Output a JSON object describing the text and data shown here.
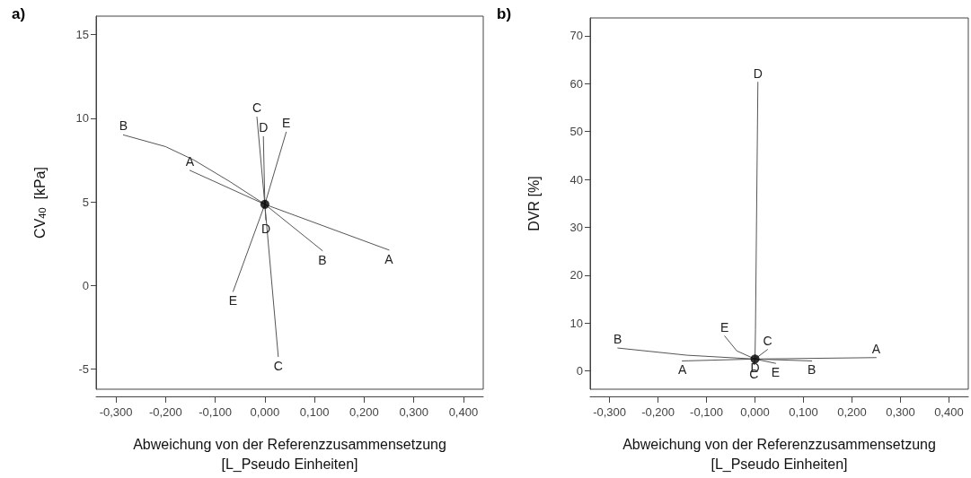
{
  "chart_data": [
    {
      "type": "line",
      "title": "a)",
      "xlabel": "Abweichung von der Referenzzusammensetzung\n[L_Pseudo Einheiten]",
      "ylabel": "CV$_{40}$  [kPa]",
      "marker": "none",
      "grid": false,
      "legend": false,
      "xlim": [
        -0.34,
        0.44
      ],
      "ylim": [
        -6.2,
        16.1
      ],
      "xticks": [
        {
          "value": -0.3,
          "label": "-0,300"
        },
        {
          "value": -0.2,
          "label": "-0,200"
        },
        {
          "value": -0.1,
          "label": "-0,100"
        },
        {
          "value": 0,
          "label": "0,000"
        },
        {
          "value": 0.1,
          "label": "0,100"
        },
        {
          "value": 0.2,
          "label": "0,200"
        },
        {
          "value": 0.3,
          "label": "0,300"
        },
        {
          "value": 0.4,
          "label": "0,400"
        }
      ],
      "yticks": [
        -5,
        0,
        5,
        10,
        15
      ],
      "series": [
        {
          "name": "A",
          "color": "#555555",
          "x": [
            -0.151,
            0,
            0.25
          ],
          "values": [
            6.88,
            4.85,
            2.12
          ]
        },
        {
          "name": "B",
          "color": "#555555",
          "x": [
            -0.285,
            -0.2,
            -0.143,
            -0.07,
            0,
            0.116
          ],
          "values": [
            9.0,
            8.3,
            7.5,
            6.2,
            4.85,
            2.08
          ]
        },
        {
          "name": "C",
          "color": "#555555",
          "x": [
            -0.016,
            0,
            0.027
          ],
          "values": [
            10.07,
            4.85,
            -4.25
          ]
        },
        {
          "name": "D",
          "color": "#555555",
          "x": [
            -0.003,
            0,
            0.002
          ],
          "values": [
            8.9,
            4.85,
            3.91
          ]
        },
        {
          "name": "E",
          "color": "#555555",
          "x": [
            0.043,
            0,
            -0.064
          ],
          "values": [
            9.17,
            4.85,
            -0.36
          ]
        },
        {
          "type": "scatter",
          "color": "#000000",
          "marker": "circle",
          "x": [
            0
          ],
          "values": [
            4.85
          ]
        }
      ]
    },
    {
      "type": "line",
      "title": "b)",
      "xlabel": "Abweichung von der Referenzzusammensetzung\n[L_Pseudo Einheiten]",
      "ylabel": "DVR [%]",
      "marker": "none",
      "grid": false,
      "legend": false,
      "xlim": [
        -0.34,
        0.44
      ],
      "ylim": [
        -3.8,
        73.7
      ],
      "xticks": [
        {
          "value": -0.3,
          "label": "-0,300"
        },
        {
          "value": -0.2,
          "label": "-0,200"
        },
        {
          "value": -0.1,
          "label": "-0,100"
        },
        {
          "value": 0,
          "label": "0,000"
        },
        {
          "value": 0.1,
          "label": "0,100"
        },
        {
          "value": 0.2,
          "label": "0,200"
        },
        {
          "value": 0.3,
          "label": "0,300"
        },
        {
          "value": 0.4,
          "label": "0,400"
        }
      ],
      "yticks": [
        0,
        10,
        20,
        30,
        40,
        50,
        60,
        70
      ],
      "series": [
        {
          "name": "A",
          "color": "#555555",
          "x": [
            -0.15,
            0,
            0.25
          ],
          "values": [
            2.1,
            2.5,
            2.8
          ]
        },
        {
          "name": "B",
          "color": "#555555",
          "x": [
            -0.283,
            -0.141,
            0,
            0.117
          ],
          "values": [
            4.8,
            3.3,
            2.5,
            2.1
          ]
        },
        {
          "name": "C",
          "color": "#555555",
          "x": [
            -0.002,
            0,
            0.026
          ],
          "values": [
            1.3,
            2.5,
            4.5
          ]
        },
        {
          "name": "D",
          "color": "#555555",
          "x": [
            0,
            0.001,
            0.006
          ],
          "values": [
            2.5,
            8.6,
            60.3
          ]
        },
        {
          "name": "E",
          "color": "#555555",
          "x": [
            -0.0625,
            -0.0375,
            0,
            0.0425
          ],
          "values": [
            7.3,
            4.2,
            2.5,
            1.6
          ]
        },
        {
          "type": "scatter",
          "color": "#000000",
          "marker": "circle",
          "x": [
            0
          ],
          "values": [
            2.5
          ]
        }
      ]
    }
  ]
}
